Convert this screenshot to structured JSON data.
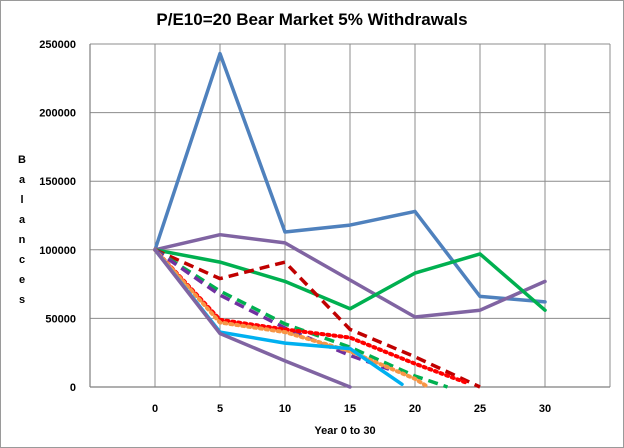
{
  "chart_data": {
    "type": "line",
    "title": "P/E10=20 Bear Market 5% Withdrawals",
    "xlabel": "Year 0 to 30",
    "ylabel": "Balances",
    "x": [
      0,
      5,
      10,
      15,
      20,
      25,
      30
    ],
    "xlim": [
      -5,
      35
    ],
    "ylim": [
      0,
      250000
    ],
    "yticks": [
      0,
      50000,
      100000,
      150000,
      200000,
      250000
    ],
    "xticks": [
      0,
      5,
      10,
      15,
      20,
      25,
      30
    ],
    "grid": true,
    "series": [
      {
        "color": "#4f81bd",
        "style": "solid",
        "points": [
          [
            0,
            100000
          ],
          [
            5,
            243000
          ],
          [
            10,
            113000
          ],
          [
            15,
            118000
          ],
          [
            20,
            128000
          ],
          [
            25,
            66000
          ],
          [
            30,
            62000
          ]
        ]
      },
      {
        "color": "#8064a2",
        "style": "solid",
        "points": [
          [
            0,
            100000
          ],
          [
            5,
            111000
          ],
          [
            10,
            105000
          ],
          [
            15,
            78000
          ],
          [
            20,
            51000
          ],
          [
            25,
            56000
          ],
          [
            30,
            77000
          ]
        ]
      },
      {
        "color": "#00b050",
        "style": "solid",
        "points": [
          [
            0,
            100000
          ],
          [
            5,
            91000
          ],
          [
            10,
            77000
          ],
          [
            15,
            57000
          ],
          [
            20,
            83000
          ],
          [
            25,
            97000
          ],
          [
            30,
            56000
          ]
        ]
      },
      {
        "color": "#c00000",
        "style": "dashed",
        "points": [
          [
            0,
            100000
          ],
          [
            5,
            79000
          ],
          [
            10,
            91000
          ],
          [
            15,
            42000
          ],
          [
            20,
            22000
          ],
          [
            25,
            0
          ]
        ]
      },
      {
        "color": "#00b050",
        "style": "dashed",
        "points": [
          [
            0,
            100000
          ],
          [
            5,
            70000
          ],
          [
            10,
            46000
          ],
          [
            15,
            29000
          ],
          [
            20,
            8000
          ],
          [
            22.5,
            0
          ]
        ]
      },
      {
        "color": "#7030a0",
        "style": "dashed",
        "points": [
          [
            0,
            100000
          ],
          [
            5,
            67000
          ],
          [
            10,
            43000
          ],
          [
            15,
            23000
          ],
          [
            18,
            13000
          ]
        ]
      },
      {
        "color": "#ff0000",
        "style": "dotted",
        "points": [
          [
            0,
            100000
          ],
          [
            5,
            49000
          ],
          [
            10,
            42000
          ],
          [
            15,
            36000
          ],
          [
            20,
            17000
          ],
          [
            24,
            3000
          ]
        ]
      },
      {
        "color": "#f79646",
        "style": "dotted",
        "points": [
          [
            0,
            100000
          ],
          [
            5,
            47000
          ],
          [
            10,
            40000
          ],
          [
            15,
            26000
          ],
          [
            20,
            6000
          ],
          [
            21,
            0
          ]
        ]
      },
      {
        "color": "#00b0f0",
        "style": "solid",
        "points": [
          [
            0,
            100000
          ],
          [
            5,
            40000
          ],
          [
            10,
            32000
          ],
          [
            15,
            28000
          ],
          [
            19,
            2000
          ]
        ]
      },
      {
        "color": "#8064a2",
        "style": "solid",
        "points": [
          [
            0,
            100000
          ],
          [
            5,
            39000
          ],
          [
            10,
            19000
          ],
          [
            15,
            0
          ]
        ]
      }
    ]
  }
}
